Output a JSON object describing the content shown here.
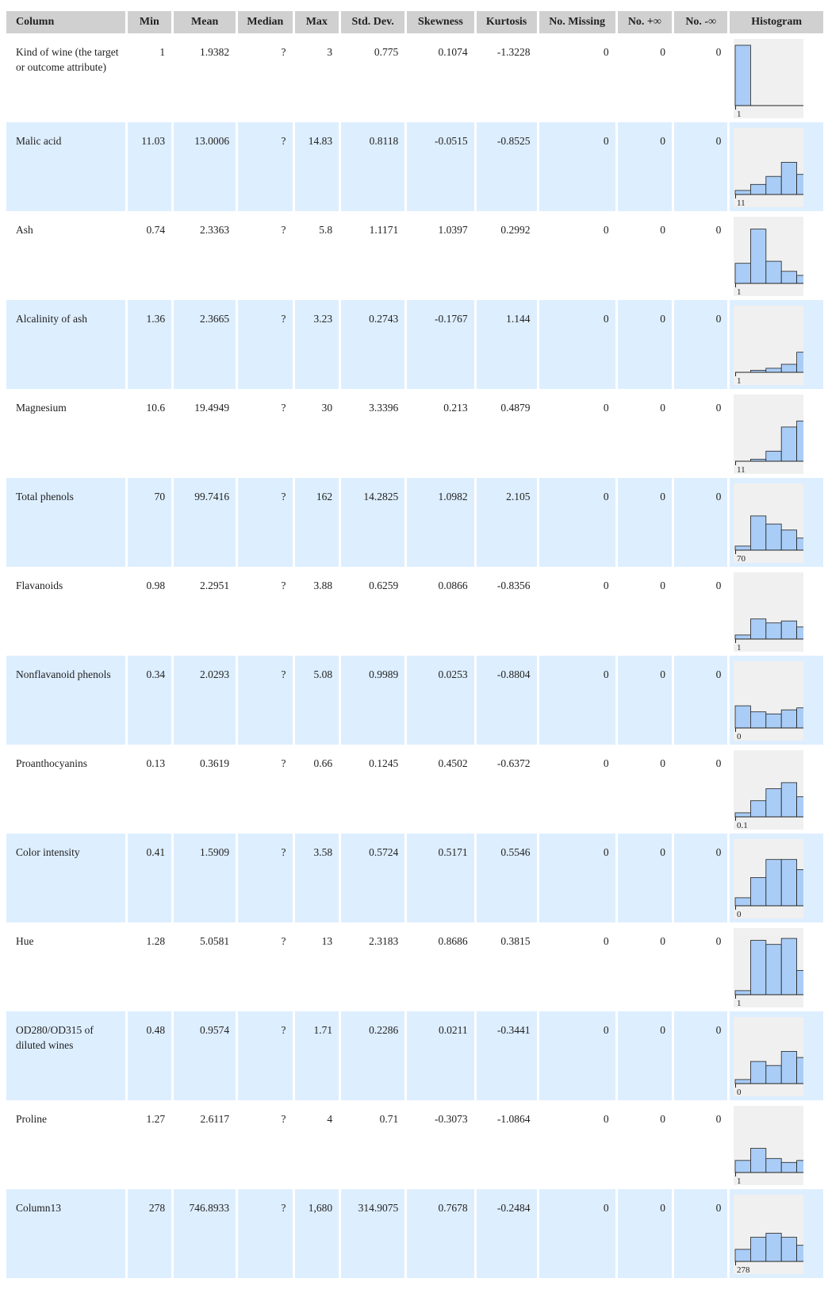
{
  "table": {
    "headers": [
      "Column",
      "Min",
      "Mean",
      "Median",
      "Max",
      "Std. Dev.",
      "Skewness",
      "Kurtosis",
      "No. Missing",
      "No. +∞",
      "No. -∞",
      "Histogram"
    ],
    "rows": [
      {
        "name": "Kind of wine (the target or outcome attribute)",
        "min": "1",
        "mean": "1.9382",
        "median": "?",
        "max": "3",
        "std": "0.775",
        "skew": "0.1074",
        "kurt": "-1.3228",
        "missing": "0",
        "pinf": "0",
        "ninf": "0",
        "hist_label": "1",
        "hist_bins": [
          0.3,
          0,
          0,
          0,
          0
        ]
      },
      {
        "name": "Malic acid",
        "min": "11.03",
        "mean": "13.0006",
        "median": "?",
        "max": "14.83",
        "std": "0.8118",
        "skew": "-0.0515",
        "kurt": "-0.8525",
        "missing": "0",
        "pinf": "0",
        "ninf": "0",
        "hist_label": "11",
        "hist_bins": [
          0.02,
          0.05,
          0.09,
          0.16,
          0.1
        ]
      },
      {
        "name": "Ash",
        "min": "0.74",
        "mean": "2.3363",
        "median": "?",
        "max": "5.8",
        "std": "1.1171",
        "skew": "1.0397",
        "kurt": "0.2992",
        "missing": "0",
        "pinf": "0",
        "ninf": "0",
        "hist_label": "1",
        "hist_bins": [
          0.1,
          0.27,
          0.11,
          0.06,
          0.04
        ]
      },
      {
        "name": "Alcalinity of ash",
        "min": "1.36",
        "mean": "2.3665",
        "median": "?",
        "max": "3.23",
        "std": "0.2743",
        "skew": "-0.1767",
        "kurt": "1.144",
        "missing": "0",
        "pinf": "0",
        "ninf": "0",
        "hist_label": "1",
        "hist_bins": [
          0.0,
          0.01,
          0.02,
          0.04,
          0.1
        ]
      },
      {
        "name": "Magnesium",
        "min": "10.6",
        "mean": "19.4949",
        "median": "?",
        "max": "30",
        "std": "3.3396",
        "skew": "0.213",
        "kurt": "0.4879",
        "missing": "0",
        "pinf": "0",
        "ninf": "0",
        "hist_label": "11",
        "hist_bins": [
          0.0,
          0.01,
          0.05,
          0.17,
          0.2
        ]
      },
      {
        "name": "Total phenols",
        "min": "70",
        "mean": "99.7416",
        "median": "?",
        "max": "162",
        "std": "14.2825",
        "skew": "1.0982",
        "kurt": "2.105",
        "missing": "0",
        "pinf": "0",
        "ninf": "0",
        "hist_label": "70",
        "hist_bins": [
          0.02,
          0.17,
          0.13,
          0.1,
          0.06
        ]
      },
      {
        "name": "Flavanoids",
        "min": "0.98",
        "mean": "2.2951",
        "median": "?",
        "max": "3.88",
        "std": "0.6259",
        "skew": "0.0866",
        "kurt": "-0.8356",
        "missing": "0",
        "pinf": "0",
        "ninf": "0",
        "hist_label": "1",
        "hist_bins": [
          0.02,
          0.1,
          0.08,
          0.09,
          0.06
        ]
      },
      {
        "name": "Nonflavanoid phenols",
        "min": "0.34",
        "mean": "2.0293",
        "median": "?",
        "max": "5.08",
        "std": "0.9989",
        "skew": "0.0253",
        "kurt": "-0.8804",
        "missing": "0",
        "pinf": "0",
        "ninf": "0",
        "hist_label": "0",
        "hist_bins": [
          0.11,
          0.08,
          0.07,
          0.09,
          0.1
        ]
      },
      {
        "name": "Proanthocyanins",
        "min": "0.13",
        "mean": "0.3619",
        "median": "?",
        "max": "0.66",
        "std": "0.1245",
        "skew": "0.4502",
        "kurt": "-0.6372",
        "missing": "0",
        "pinf": "0",
        "ninf": "0",
        "hist_label": "0.1",
        "hist_bins": [
          0.02,
          0.08,
          0.14,
          0.17,
          0.1
        ]
      },
      {
        "name": "Color intensity",
        "min": "0.41",
        "mean": "1.5909",
        "median": "?",
        "max": "3.58",
        "std": "0.5724",
        "skew": "0.5171",
        "kurt": "0.5546",
        "missing": "0",
        "pinf": "0",
        "ninf": "0",
        "hist_label": "0",
        "hist_bins": [
          0.04,
          0.14,
          0.23,
          0.23,
          0.18
        ]
      },
      {
        "name": "Hue",
        "min": "1.28",
        "mean": "5.0581",
        "median": "?",
        "max": "13",
        "std": "2.3183",
        "skew": "0.8686",
        "kurt": "0.3815",
        "missing": "0",
        "pinf": "0",
        "ninf": "0",
        "hist_label": "1",
        "hist_bins": [
          0.02,
          0.27,
          0.25,
          0.28,
          0.12
        ]
      },
      {
        "name": "OD280/OD315 of diluted wines",
        "min": "0.48",
        "mean": "0.9574",
        "median": "?",
        "max": "1.71",
        "std": "0.2286",
        "skew": "0.0211",
        "kurt": "-0.3441",
        "missing": "0",
        "pinf": "0",
        "ninf": "0",
        "hist_label": "0",
        "hist_bins": [
          0.02,
          0.11,
          0.09,
          0.16,
          0.13
        ]
      },
      {
        "name": "Proline",
        "min": "1.27",
        "mean": "2.6117",
        "median": "?",
        "max": "4",
        "std": "0.71",
        "skew": "-0.3073",
        "kurt": "-1.0864",
        "missing": "0",
        "pinf": "0",
        "ninf": "0",
        "hist_label": "1",
        "hist_bins": [
          0.06,
          0.12,
          0.07,
          0.05,
          0.06
        ]
      },
      {
        "name": "Column13",
        "min": "278",
        "mean": "746.8933",
        "median": "?",
        "max": "1,680",
        "std": "314.9075",
        "skew": "0.7678",
        "kurt": "-0.2484",
        "missing": "0",
        "pinf": "0",
        "ninf": "0",
        "hist_label": "278",
        "hist_bins": [
          0.06,
          0.12,
          0.14,
          0.12,
          0.08
        ]
      }
    ]
  },
  "colors": {
    "header_bg": "#d0d0d0",
    "row_alt_bg": "#ddeeff",
    "hist_bg": "#f0f0f0",
    "bar_fill": "#a9cdf7"
  }
}
